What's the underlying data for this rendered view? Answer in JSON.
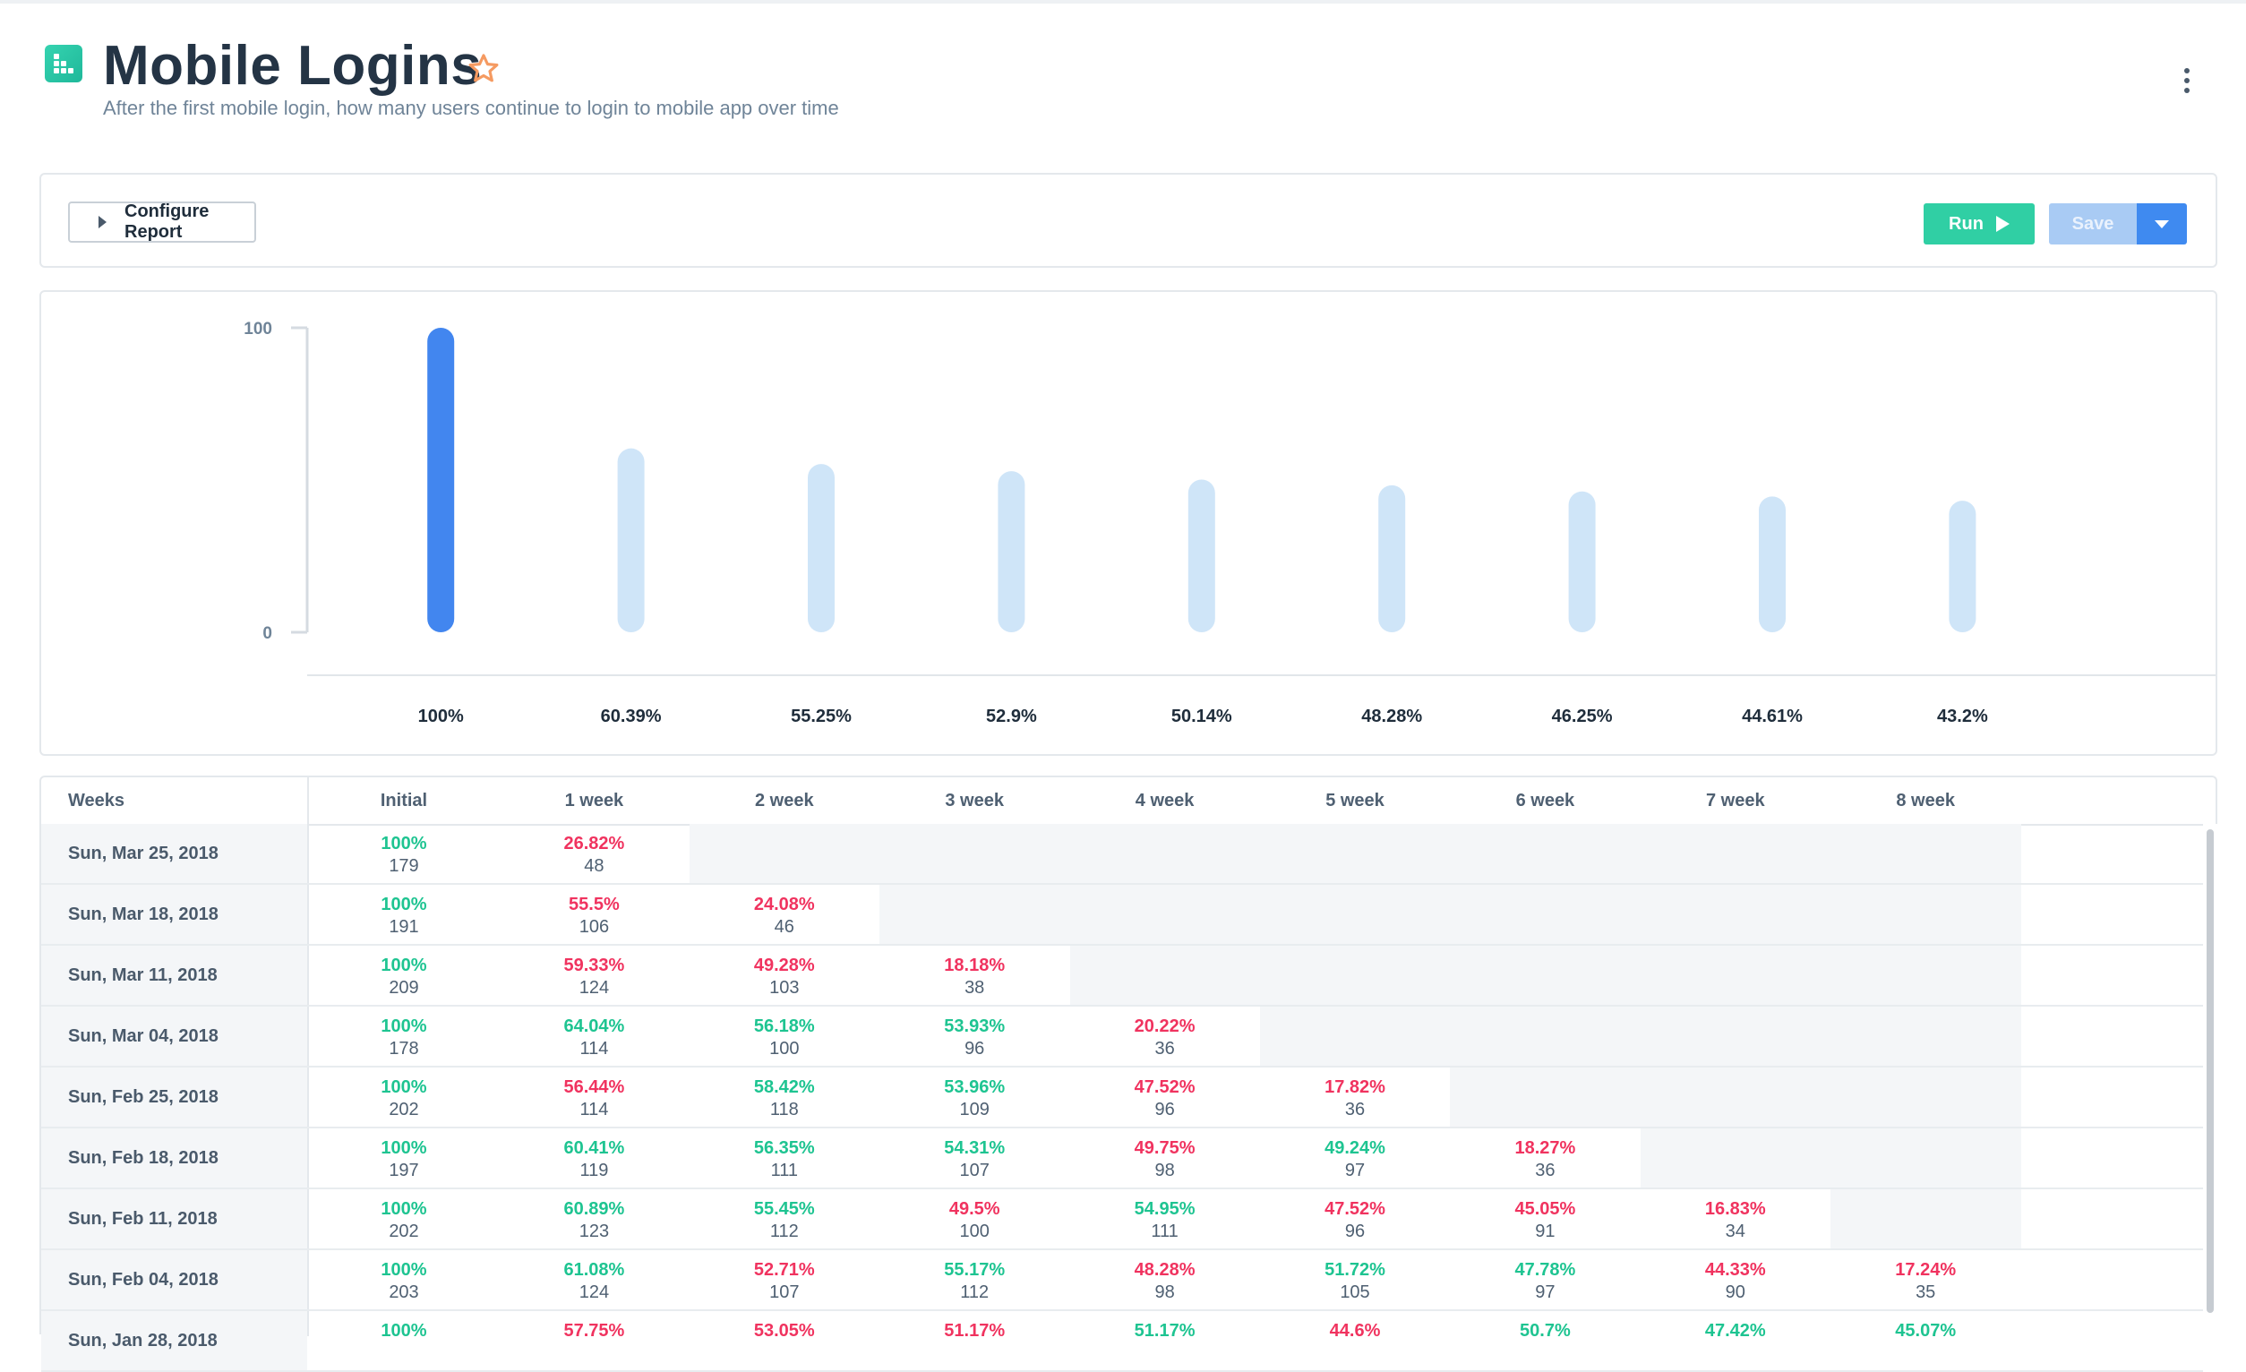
{
  "report": {
    "title": "Mobile Logins",
    "subtitle": "After the first mobile login, how many users continue to login to mobile app over time"
  },
  "toolbar": {
    "configure_label": "Configure Report",
    "run_label": "Run",
    "save_label": "Save"
  },
  "colors": {
    "primary_bar": "#4286ef",
    "secondary_bar": "#cfe5f8",
    "good": "#1ec491",
    "bad": "#f0335f",
    "run": "#30cfa4",
    "save": "#a9cbf4"
  },
  "chart_data": {
    "type": "bar",
    "categories": [
      "Initial",
      "1 week",
      "2 week",
      "3 week",
      "4 week",
      "5 week",
      "6 week",
      "7 week",
      "8 week"
    ],
    "values": [
      100,
      60.39,
      55.25,
      52.9,
      50.14,
      48.28,
      46.25,
      44.61,
      43.2
    ],
    "value_labels": [
      "100%",
      "60.39%",
      "55.25%",
      "52.9%",
      "50.14%",
      "48.28%",
      "46.25%",
      "44.61%",
      "43.2%"
    ],
    "y_ticks": [
      "100",
      "0"
    ],
    "ylim": [
      0,
      100
    ],
    "grid": false
  },
  "table": {
    "header_first": "Weeks",
    "columns": [
      "Initial",
      "1 week",
      "2 week",
      "3 week",
      "4 week",
      "5 week",
      "6 week",
      "7 week",
      "8 week"
    ],
    "rows": [
      {
        "date": "Sun, Mar 25, 2018",
        "cells": [
          [
            "100%",
            "179",
            "good"
          ],
          [
            "26.82%",
            "48",
            "bad"
          ]
        ]
      },
      {
        "date": "Sun, Mar 18, 2018",
        "cells": [
          [
            "100%",
            "191",
            "good"
          ],
          [
            "55.5%",
            "106",
            "bad"
          ],
          [
            "24.08%",
            "46",
            "bad"
          ]
        ]
      },
      {
        "date": "Sun, Mar 11, 2018",
        "cells": [
          [
            "100%",
            "209",
            "good"
          ],
          [
            "59.33%",
            "124",
            "bad"
          ],
          [
            "49.28%",
            "103",
            "bad"
          ],
          [
            "18.18%",
            "38",
            "bad"
          ]
        ]
      },
      {
        "date": "Sun, Mar 04, 2018",
        "cells": [
          [
            "100%",
            "178",
            "good"
          ],
          [
            "64.04%",
            "114",
            "good"
          ],
          [
            "56.18%",
            "100",
            "good"
          ],
          [
            "53.93%",
            "96",
            "good"
          ],
          [
            "20.22%",
            "36",
            "bad"
          ]
        ]
      },
      {
        "date": "Sun, Feb 25, 2018",
        "cells": [
          [
            "100%",
            "202",
            "good"
          ],
          [
            "56.44%",
            "114",
            "bad"
          ],
          [
            "58.42%",
            "118",
            "good"
          ],
          [
            "53.96%",
            "109",
            "good"
          ],
          [
            "47.52%",
            "96",
            "bad"
          ],
          [
            "17.82%",
            "36",
            "bad"
          ]
        ]
      },
      {
        "date": "Sun, Feb 18, 2018",
        "cells": [
          [
            "100%",
            "197",
            "good"
          ],
          [
            "60.41%",
            "119",
            "good"
          ],
          [
            "56.35%",
            "111",
            "good"
          ],
          [
            "54.31%",
            "107",
            "good"
          ],
          [
            "49.75%",
            "98",
            "bad"
          ],
          [
            "49.24%",
            "97",
            "good"
          ],
          [
            "18.27%",
            "36",
            "bad"
          ]
        ]
      },
      {
        "date": "Sun, Feb 11, 2018",
        "cells": [
          [
            "100%",
            "202",
            "good"
          ],
          [
            "60.89%",
            "123",
            "good"
          ],
          [
            "55.45%",
            "112",
            "good"
          ],
          [
            "49.5%",
            "100",
            "bad"
          ],
          [
            "54.95%",
            "111",
            "good"
          ],
          [
            "47.52%",
            "96",
            "bad"
          ],
          [
            "45.05%",
            "91",
            "bad"
          ],
          [
            "16.83%",
            "34",
            "bad"
          ]
        ]
      },
      {
        "date": "Sun, Feb 04, 2018",
        "cells": [
          [
            "100%",
            "203",
            "good"
          ],
          [
            "61.08%",
            "124",
            "good"
          ],
          [
            "52.71%",
            "107",
            "bad"
          ],
          [
            "55.17%",
            "112",
            "good"
          ],
          [
            "48.28%",
            "98",
            "bad"
          ],
          [
            "51.72%",
            "105",
            "good"
          ],
          [
            "47.78%",
            "97",
            "good"
          ],
          [
            "44.33%",
            "90",
            "bad"
          ],
          [
            "17.24%",
            "35",
            "bad"
          ]
        ]
      },
      {
        "date": "Sun, Jan 28, 2018",
        "cells": [
          [
            "100%",
            "",
            "good"
          ],
          [
            "57.75%",
            "",
            "bad"
          ],
          [
            "53.05%",
            "",
            "bad"
          ],
          [
            "51.17%",
            "",
            "bad"
          ],
          [
            "51.17%",
            "",
            "good"
          ],
          [
            "44.6%",
            "",
            "bad"
          ],
          [
            "50.7%",
            "",
            "good"
          ],
          [
            "47.42%",
            "",
            "good"
          ],
          [
            "45.07%",
            "",
            "good"
          ]
        ]
      }
    ]
  }
}
